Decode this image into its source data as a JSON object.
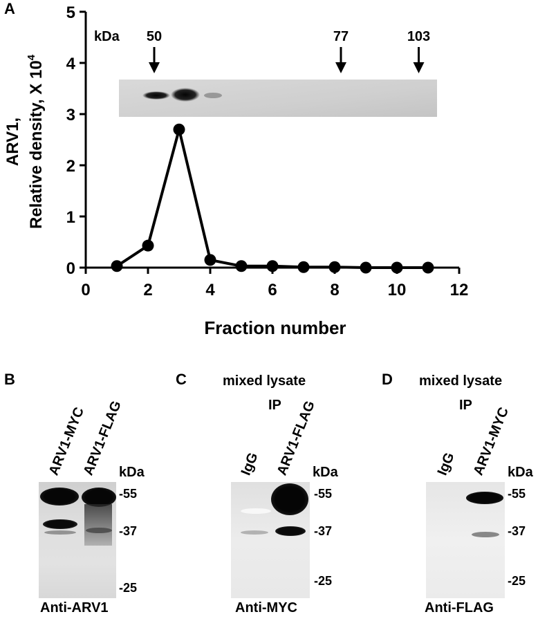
{
  "panel_a": {
    "letter": "A",
    "chart_data": {
      "type": "line",
      "x": [
        1,
        2,
        3,
        4,
        5,
        6,
        7,
        8,
        9,
        10,
        11
      ],
      "series": [
        {
          "values": [
            0.03,
            0.43,
            2.7,
            0.15,
            0.03,
            0.03,
            0.01,
            0.01,
            0.0,
            0.0,
            0.0
          ]
        }
      ],
      "xlabel": "Fraction number",
      "ylabel_line1": "ARV1,",
      "ylabel_line2": "Relative density, X 10",
      "ylabel_sup": "4",
      "xlim": [
        0,
        12
      ],
      "ylim": [
        0,
        5
      ],
      "xticks": [
        "0",
        "2",
        "4",
        "6",
        "8",
        "10",
        "12"
      ],
      "yticks": [
        "0",
        "1",
        "2",
        "3",
        "4",
        "5"
      ],
      "grid": false
    },
    "kda_label": "kDa",
    "markers": [
      {
        "label": "50",
        "fraction": 2.2
      },
      {
        "label": "77",
        "fraction": 8.2
      },
      {
        "label": "103",
        "fraction": 10.7
      }
    ]
  },
  "panel_b": {
    "letter": "B",
    "lanes": [
      "ARV1-MYC",
      "ARV1-FLAG"
    ],
    "kda_label": "kDa",
    "markers": [
      "-55",
      "-37",
      "-25"
    ],
    "antibody": "Anti-ARV1"
  },
  "panel_c": {
    "letter": "C",
    "title": "mixed lysate",
    "ip_label": "IP",
    "lanes": [
      "IgG",
      "ARV1-FLAG"
    ],
    "kda_label": "kDa",
    "markers": [
      "-55",
      "-37",
      "-25"
    ],
    "antibody": "Anti-MYC"
  },
  "panel_d": {
    "letter": "D",
    "title": "mixed lysate",
    "ip_label": "IP",
    "lanes": [
      "IgG",
      "ARV1-MYC"
    ],
    "kda_label": "kDa",
    "markers": [
      "-55",
      "-37",
      "-25"
    ],
    "antibody": "Anti-FLAG"
  }
}
